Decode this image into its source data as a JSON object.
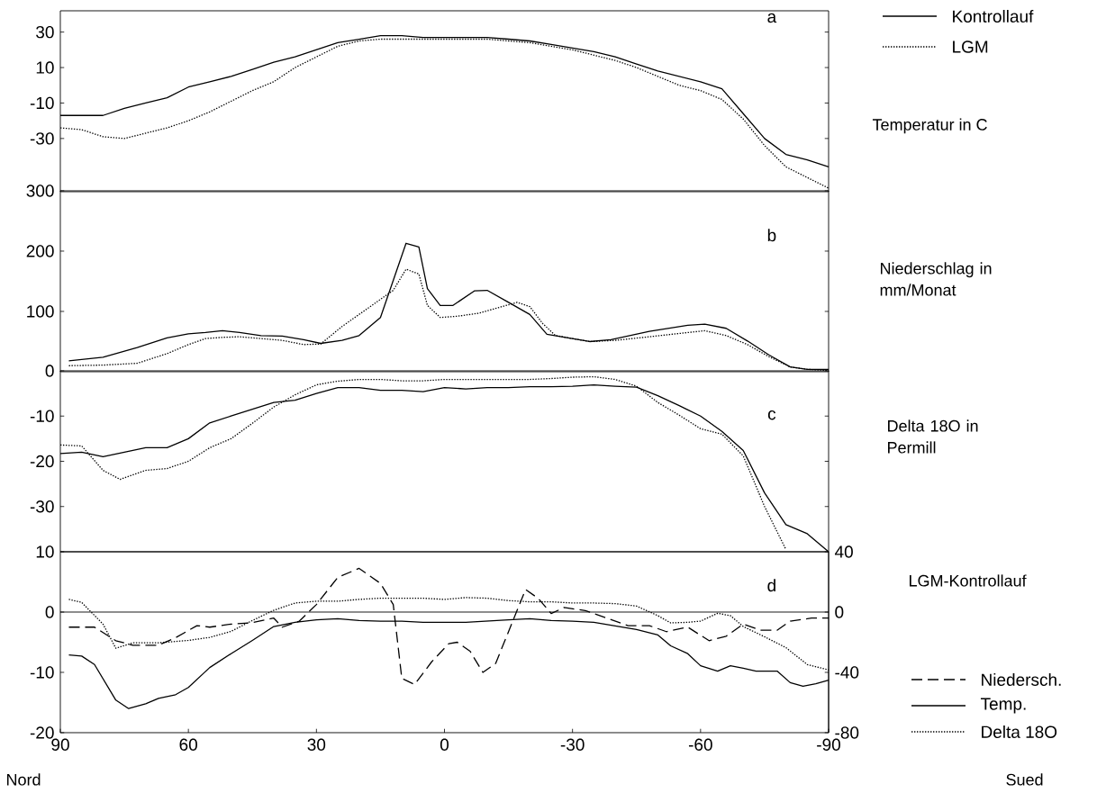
{
  "chart_data": [
    {
      "type": "line",
      "title": "a",
      "ylabel": "Temperatur in C",
      "xlim": [
        90,
        -90
      ],
      "ylim": [
        -60,
        42
      ],
      "yticks": [
        30,
        10,
        -10,
        -30
      ],
      "tick_labels": "y",
      "legend": "top right",
      "x": [
        90,
        85,
        80,
        75,
        70,
        65,
        60,
        55,
        50,
        45,
        40,
        35,
        30,
        25,
        20,
        15,
        10,
        5,
        0,
        -5,
        -10,
        -15,
        -20,
        -25,
        -30,
        -35,
        -40,
        -45,
        -50,
        -55,
        -60,
        -65,
        -70,
        -75,
        -80,
        -85,
        -90
      ],
      "series": [
        {
          "name": "Kontrollauf",
          "color": "#000000",
          "line_style": "solid",
          "values": [
            -17,
            -17,
            -17,
            -13,
            -10,
            -7,
            -1,
            2,
            5,
            9,
            13,
            16,
            20,
            24,
            26,
            28,
            28,
            27,
            27,
            27,
            27,
            26,
            25,
            23,
            21,
            19,
            16,
            12,
            8,
            5,
            2,
            -2,
            -16,
            -30,
            -39,
            -42,
            -46
          ]
        },
        {
          "name": "LGM",
          "color": "#000000",
          "line_style": "dotted",
          "values": [
            -24,
            -25,
            -29,
            -30,
            -27,
            -24,
            -20,
            -15,
            -9,
            -3,
            2,
            10,
            16,
            22,
            25,
            26,
            26,
            26,
            26,
            26,
            26,
            25,
            24,
            22,
            20,
            17,
            14,
            10,
            5,
            0,
            -3,
            -8,
            -19,
            -34,
            -46,
            -52,
            -58
          ]
        }
      ]
    },
    {
      "type": "line",
      "title": "b",
      "ylabel": "Niederschlag in mm/Monat",
      "xlim": [
        90,
        -90
      ],
      "ylim": [
        0,
        300
      ],
      "yticks": [
        100,
        200,
        300
      ],
      "tick_labels": "y",
      "series": [
        {
          "color": "#000000",
          "line_style": "solid",
          "x": [
            88,
            80,
            72,
            65,
            60,
            56,
            52,
            48,
            43,
            38,
            33,
            29,
            24,
            20,
            15,
            9,
            6,
            4,
            1,
            -2,
            -7,
            -10,
            -15,
            -20,
            -24,
            -34,
            -39,
            -48,
            -57,
            -61,
            -66,
            -71,
            -76,
            -81,
            -85,
            -90
          ],
          "values": [
            18,
            24,
            40,
            56,
            63,
            65,
            68,
            65,
            60,
            59,
            53,
            47,
            52,
            60,
            90,
            213,
            207,
            138,
            110,
            110,
            134,
            135,
            115,
            95,
            62,
            50,
            53,
            67,
            77,
            79,
            72,
            51,
            28,
            8,
            4,
            4
          ]
        },
        {
          "color": "#000000",
          "line_style": "dotted",
          "x": [
            88,
            80,
            72,
            65,
            60,
            56,
            52,
            48,
            43,
            38,
            33,
            29,
            24,
            19,
            15,
            12,
            9,
            6,
            4,
            1,
            -3,
            -8,
            -12,
            -17,
            -20,
            -23,
            -26,
            -30,
            -34,
            -40,
            -48,
            -57,
            -61,
            -66,
            -71,
            -76,
            -81,
            -85,
            -90
          ],
          "values": [
            10,
            11,
            14,
            30,
            45,
            55,
            57,
            58,
            55,
            52,
            45,
            46,
            75,
            100,
            120,
            135,
            170,
            162,
            110,
            90,
            92,
            97,
            105,
            115,
            108,
            80,
            60,
            55,
            50,
            52,
            58,
            65,
            68,
            60,
            45,
            25,
            8,
            4,
            2
          ]
        }
      ]
    },
    {
      "type": "line",
      "title": "c",
      "ylabel": "Delta 18O in Permill",
      "xlim": [
        90,
        -90
      ],
      "ylim": [
        -40,
        0
      ],
      "yticks": [
        0,
        -10,
        -20,
        -30
      ],
      "tick_labels": "y",
      "series": [
        {
          "color": "#000000",
          "line_style": "solid",
          "x": [
            90,
            85,
            80,
            75,
            70,
            65,
            60,
            55,
            50,
            45,
            40,
            35,
            30,
            25,
            20,
            15,
            10,
            5,
            0,
            -5,
            -10,
            -15,
            -20,
            -25,
            -30,
            -35,
            -40,
            -45,
            -50,
            -55,
            -60,
            -65,
            -70,
            -75,
            -80,
            -85,
            -90
          ],
          "values": [
            -18.3,
            -18,
            -19,
            -18,
            -17,
            -17,
            -15,
            -11.5,
            -10,
            -8.5,
            -7,
            -6.5,
            -5,
            -3.7,
            -3.7,
            -4.3,
            -4.3,
            -4.6,
            -3.7,
            -4,
            -3.7,
            -3.7,
            -3.5,
            -3.5,
            -3.4,
            -3.1,
            -3.4,
            -3.6,
            -5.5,
            -7.7,
            -10,
            -13.4,
            -17.6,
            -27,
            -34,
            -36,
            -40
          ]
        },
        {
          "color": "#000000",
          "line_style": "dotted",
          "x": [
            90,
            85,
            80,
            76,
            70,
            65,
            60,
            55,
            50,
            45,
            40,
            35,
            30,
            25,
            20,
            15,
            10,
            5,
            0,
            -5,
            -10,
            -15,
            -20,
            -25,
            -30,
            -35,
            -40,
            -45,
            -50,
            -55,
            -60,
            -65,
            -70,
            -75,
            -80
          ],
          "values": [
            -16.4,
            -16.6,
            -22,
            -24,
            -22,
            -21.6,
            -20,
            -17,
            -15,
            -11.6,
            -8,
            -5.3,
            -3.1,
            -2.3,
            -1.9,
            -1.9,
            -2.2,
            -2.2,
            -1.9,
            -1.9,
            -1.9,
            -1.9,
            -1.9,
            -1.7,
            -1.4,
            -1.3,
            -1.9,
            -3.4,
            -7,
            -9.8,
            -12.8,
            -14,
            -18.8,
            -30,
            -39.5
          ]
        }
      ]
    },
    {
      "type": "line",
      "title": "d",
      "y2label": "LGM-Kontrollauf",
      "xlim": [
        90,
        -90
      ],
      "xticks": [
        90,
        60,
        30,
        0,
        -30,
        -60,
        -90
      ],
      "ylim": [
        -20,
        10
      ],
      "yticks": [
        -20,
        -10,
        0,
        10
      ],
      "y2lim": [
        -80,
        40
      ],
      "y2ticks": [
        -80,
        -40,
        0,
        40
      ],
      "legend": "bottom right",
      "ref_lines": [
        {
          "axis": "y",
          "value": 0
        }
      ],
      "annotations": [
        "Nord",
        "Sued"
      ],
      "series": [
        {
          "name": "Niedersch.",
          "color": "#000000",
          "line_style": "dashed",
          "axis": "y2",
          "x": [
            88,
            82,
            77,
            73,
            67,
            63,
            58,
            55,
            50,
            45,
            40,
            38,
            34,
            30,
            25,
            20,
            15,
            12,
            10,
            7,
            3,
            -1,
            -3,
            -6,
            -9,
            -12,
            -16,
            -19,
            -22,
            -25,
            -28,
            -33,
            -38,
            -43,
            -48,
            -52,
            -57,
            -62,
            -66,
            -70,
            -74,
            -78,
            -81,
            -86,
            -90
          ],
          "values": [
            -10,
            -10,
            -19,
            -22,
            -22,
            -17,
            -9,
            -10,
            -8,
            -7,
            -4,
            -10,
            -6,
            5,
            23,
            29,
            19,
            5,
            -44,
            -48,
            -33,
            -21,
            -20,
            -26,
            -40,
            -34,
            -6,
            15,
            9,
            -1,
            3,
            1,
            -4,
            -9,
            -9,
            -13,
            -10,
            -19,
            -16,
            -8,
            -12,
            -12,
            -6,
            -4,
            -4
          ]
        },
        {
          "name": "Temp.",
          "color": "#000000",
          "line_style": "solid",
          "x": [
            88,
            85,
            82,
            77,
            74,
            70,
            67,
            63,
            60,
            55,
            50,
            45,
            40,
            35,
            30,
            25,
            20,
            15,
            10,
            5,
            0,
            -5,
            -10,
            -15,
            -20,
            -25,
            -30,
            -35,
            -40,
            -45,
            -50,
            -53,
            -57,
            -60,
            -64,
            -67,
            -70,
            -73,
            -78,
            -81,
            -84,
            -87,
            -90
          ],
          "values": [
            -7.1,
            -7.3,
            -8.7,
            -14.6,
            -16,
            -15.2,
            -14.3,
            -13.7,
            -12.5,
            -9.2,
            -6.9,
            -4.7,
            -2.4,
            -1.7,
            -1.3,
            -1.1,
            -1.4,
            -1.5,
            -1.5,
            -1.7,
            -1.7,
            -1.7,
            -1.5,
            -1.3,
            -1.1,
            -1.4,
            -1.5,
            -1.7,
            -2.3,
            -2.9,
            -3.8,
            -5.6,
            -6.9,
            -8.9,
            -9.8,
            -8.9,
            -9.3,
            -9.8,
            -9.8,
            -11.7,
            -12.3,
            -11.9,
            -11.3
          ]
        },
        {
          "name": "Delta 18O",
          "color": "#000000",
          "line_style": "dotted",
          "x": [
            88,
            85,
            80,
            77,
            73,
            67,
            60,
            55,
            50,
            45,
            40,
            35,
            30,
            25,
            20,
            15,
            10,
            5,
            0,
            -5,
            -10,
            -15,
            -20,
            -25,
            -30,
            -35,
            -40,
            -45,
            -50,
            -53,
            -57,
            -60,
            -64,
            -67,
            -70,
            -75,
            -80,
            -85,
            -90
          ],
          "values": [
            2.1,
            1.6,
            -2,
            -6,
            -5.1,
            -5.1,
            -4.7,
            -4.2,
            -3.2,
            -1.4,
            0.3,
            1.5,
            1.8,
            1.8,
            2.1,
            2.3,
            2.3,
            2.3,
            2.1,
            2.4,
            2.3,
            1.9,
            1.7,
            1.7,
            1.5,
            1.5,
            1.4,
            1,
            -0.6,
            -1.8,
            -1.7,
            -1.5,
            -0.2,
            -0.6,
            -2.4,
            -4.1,
            -5.9,
            -8.7,
            -9.6
          ]
        }
      ]
    }
  ]
}
